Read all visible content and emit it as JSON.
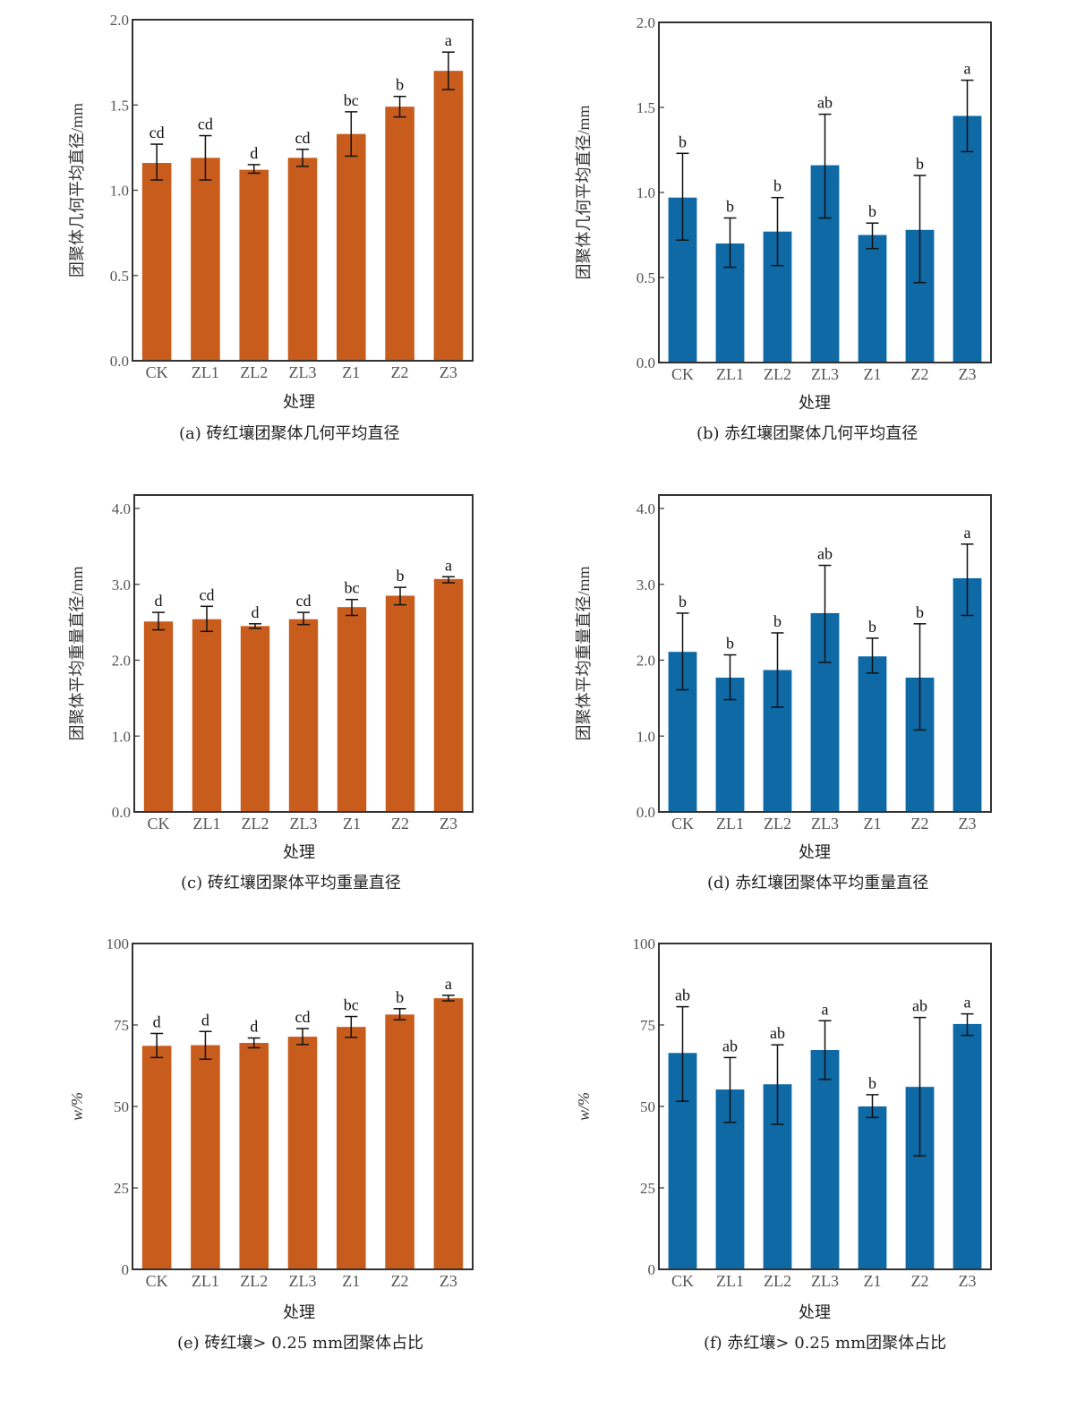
{
  "colors": {
    "brick_red_soil": "#C85C1C",
    "red_soil": "#0E69A5",
    "axis": "#333333",
    "errorbar": "#111111"
  },
  "chart_data": [
    {
      "id": "a",
      "type": "bar",
      "caption": "(a)  砖红壤团聚体几何平均直径",
      "xlabel": "处理",
      "ylabel": "团聚体几何平均直径/mm",
      "categories": [
        "CK",
        "ZL1",
        "ZL2",
        "ZL3",
        "Z1",
        "Z2",
        "Z3"
      ],
      "values": [
        1.16,
        1.19,
        1.12,
        1.19,
        1.33,
        1.49,
        1.7
      ],
      "error_low": [
        1.06,
        1.06,
        1.1,
        1.14,
        1.2,
        1.43,
        1.59
      ],
      "error_high": [
        1.27,
        1.32,
        1.15,
        1.24,
        1.46,
        1.55,
        1.81
      ],
      "letters": [
        "cd",
        "cd",
        "d",
        "cd",
        "bc",
        "b",
        "a"
      ],
      "yticks": [
        "0.0",
        "0.5",
        "1.0",
        "1.5",
        "2.0"
      ],
      "ylim": [
        0,
        2.0
      ],
      "color_key": "brick_red_soil"
    },
    {
      "id": "b",
      "type": "bar",
      "caption": "(b) 赤红壤团聚体几何平均直径",
      "xlabel": "处理",
      "ylabel": "团聚体几何平均直径/mm",
      "categories": [
        "CK",
        "ZL1",
        "ZL2",
        "ZL3",
        "Z1",
        "Z2",
        "Z3"
      ],
      "values": [
        0.97,
        0.7,
        0.77,
        1.16,
        0.75,
        0.78,
        1.45
      ],
      "error_low": [
        0.72,
        0.56,
        0.57,
        0.85,
        0.67,
        0.47,
        1.24
      ],
      "error_high": [
        1.23,
        0.85,
        0.97,
        1.46,
        0.82,
        1.1,
        1.66
      ],
      "letters": [
        "b",
        "b",
        "b",
        "ab",
        "b",
        "b",
        "a"
      ],
      "yticks": [
        "0.0",
        "0.5",
        "1.0",
        "1.5",
        "2.0"
      ],
      "ylim": [
        0,
        2.0
      ],
      "color_key": "red_soil"
    },
    {
      "id": "c",
      "type": "bar",
      "caption": "(c)  砖红壤团聚体平均重量直径",
      "xlabel": "处理",
      "ylabel": "团聚体平均重量直径/mm",
      "categories": [
        "CK",
        "ZL1",
        "ZL2",
        "ZL3",
        "Z1",
        "Z2",
        "Z3"
      ],
      "values": [
        2.51,
        2.54,
        2.45,
        2.54,
        2.7,
        2.85,
        3.07
      ],
      "error_low": [
        2.4,
        2.38,
        2.42,
        2.47,
        2.59,
        2.73,
        3.02
      ],
      "error_high": [
        2.63,
        2.71,
        2.48,
        2.63,
        2.8,
        2.96,
        3.1
      ],
      "letters": [
        "d",
        "cd",
        "d",
        "cd",
        "bc",
        "b",
        "a"
      ],
      "yticks": [
        "0.0",
        "1.0",
        "2.0",
        "3.0",
        "4.0"
      ],
      "ylim": [
        0,
        4.0
      ],
      "color_key": "brick_red_soil"
    },
    {
      "id": "d",
      "type": "bar",
      "caption": "(d) 赤红壤团聚体平均重量直径",
      "xlabel": "处理",
      "ylabel": "团聚体平均重量直径/mm",
      "categories": [
        "CK",
        "ZL1",
        "ZL2",
        "ZL3",
        "Z1",
        "Z2",
        "Z3"
      ],
      "values": [
        2.11,
        1.77,
        1.87,
        2.62,
        2.05,
        1.77,
        3.08
      ],
      "error_low": [
        1.61,
        1.48,
        1.38,
        1.97,
        1.83,
        1.08,
        2.59
      ],
      "error_high": [
        2.62,
        2.07,
        2.36,
        3.25,
        2.29,
        2.48,
        3.53
      ],
      "letters": [
        "b",
        "b",
        "b",
        "ab",
        "b",
        "b",
        "a"
      ],
      "yticks": [
        "0.0",
        "1.0",
        "2.0",
        "3.0",
        "4.0"
      ],
      "ylim": [
        0,
        4.0
      ],
      "color_key": "red_soil"
    },
    {
      "id": "e",
      "type": "bar",
      "caption": "(e) 砖红壤> 0.25 mm团聚体占比",
      "xlabel": "处理",
      "ylabel": "w/%",
      "categories": [
        "CK",
        "ZL1",
        "ZL2",
        "ZL3",
        "Z1",
        "Z2",
        "Z3"
      ],
      "values": [
        68.6,
        68.8,
        69.5,
        71.4,
        74.4,
        78.2,
        83.2
      ],
      "error_low": [
        65.0,
        64.5,
        68.0,
        69.0,
        71.2,
        76.6,
        82.4
      ],
      "error_high": [
        72.4,
        73.0,
        71.0,
        73.9,
        77.6,
        80.0,
        84.1
      ],
      "letters": [
        "d",
        "d",
        "d",
        "cd",
        "bc",
        "b",
        "a"
      ],
      "yticks": [
        "0",
        "25",
        "50",
        "75",
        "100"
      ],
      "ylim": [
        0,
        100
      ],
      "color_key": "brick_red_soil"
    },
    {
      "id": "f",
      "type": "bar",
      "caption": "(f) 赤红壤> 0.25 mm团聚体占比",
      "xlabel": "处理",
      "ylabel": "w/%",
      "categories": [
        "CK",
        "ZL1",
        "ZL2",
        "ZL3",
        "Z1",
        "Z2",
        "Z3"
      ],
      "values": [
        66.4,
        55.2,
        56.8,
        67.3,
        50.0,
        56.0,
        75.3
      ],
      "error_low": [
        51.6,
        45.1,
        44.5,
        58.3,
        46.6,
        34.8,
        71.8
      ],
      "error_high": [
        80.6,
        65.0,
        68.9,
        76.3,
        53.6,
        77.3,
        78.4
      ],
      "letters": [
        "ab",
        "ab",
        "ab",
        "a",
        "b",
        "ab",
        "a"
      ],
      "yticks": [
        "0",
        "25",
        "50",
        "75",
        "100"
      ],
      "ylim": [
        0,
        100
      ],
      "color_key": "red_soil"
    }
  ]
}
